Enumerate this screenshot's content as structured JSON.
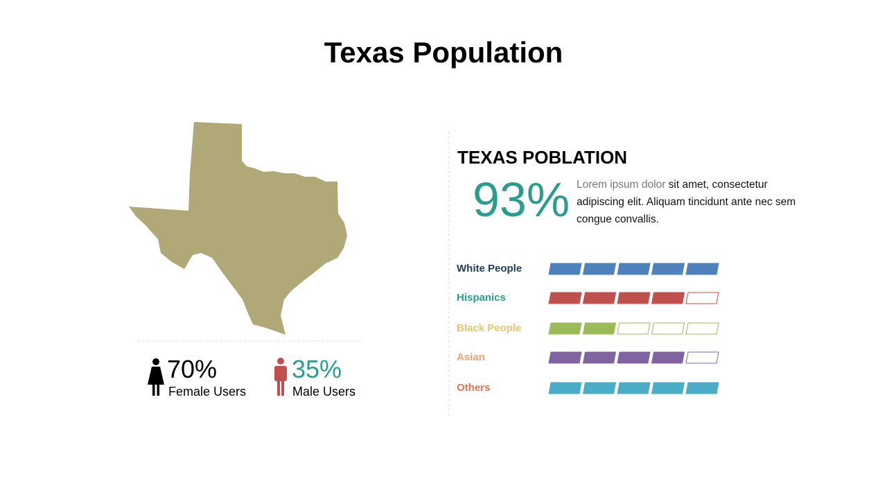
{
  "title": "Texas Population",
  "stats": [
    {
      "value": "70%",
      "label": "Female Users",
      "color": "#000000"
    },
    {
      "value": "35%",
      "label": "Male Users",
      "color": "#2a9d8f"
    }
  ],
  "panel": {
    "heading": "TEXAS POBLATION",
    "big_number": "93%",
    "text_gray": "Lorem ipsum dolor",
    "text": "sit amet, consectetur adipiscing elit. Aliquam tincidunt ante nec sem congue convallis."
  },
  "ratings": {
    "max": 5,
    "rows": [
      {
        "name": "White People",
        "value": 5,
        "label_color": "#1f3b57",
        "color": "#4f81bd"
      },
      {
        "name": "Hispanics",
        "value": 4,
        "label_color": "#2a9d8f",
        "color": "#c0504d"
      },
      {
        "name": "Black People",
        "value": 2,
        "label_color": "#e8c46e",
        "color": "#9bbb59"
      },
      {
        "name": "Asian",
        "value": 4,
        "label_color": "#f0a070",
        "color": "#8064a2"
      },
      {
        "name": "Others",
        "value": 5,
        "label_color": "#e87055",
        "color": "#4bacc6"
      }
    ]
  }
}
